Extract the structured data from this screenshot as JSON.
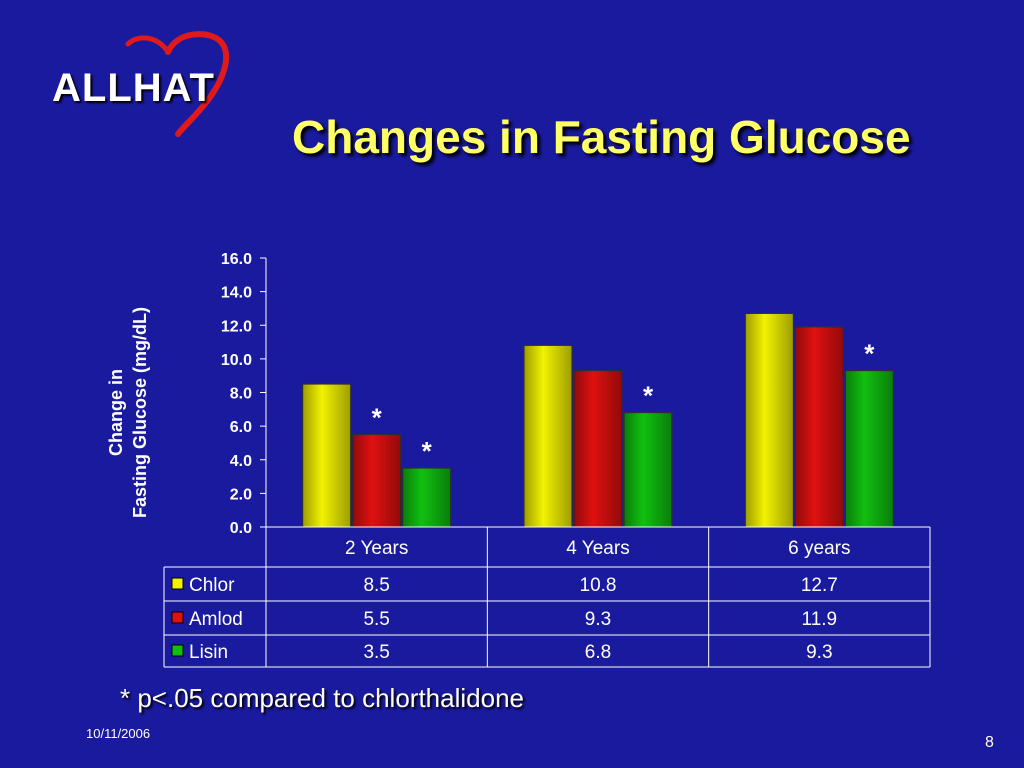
{
  "slide": {
    "logo_text": "ALLHAT",
    "title": "Changes in Fasting Glucose",
    "footnote": "* p<.05 compared to chlorthalidone",
    "date": "10/11/2006",
    "page_number": "8"
  },
  "colors": {
    "background": "#1a1a9e",
    "title": "#ffff66",
    "logo_heart": "#e01a1a"
  },
  "chart_data": {
    "type": "bar",
    "ylabel": [
      "Change in",
      "Fasting Glucose (mg/dL)"
    ],
    "ylim": [
      0,
      16
    ],
    "yticks": [
      "16.0",
      "14.0",
      "12.0",
      "10.0",
      "8.0",
      "6.0",
      "4.0",
      "2.0",
      "0.0"
    ],
    "categories": [
      "2 Years",
      "4 Years",
      "6 years"
    ],
    "series": [
      {
        "name": "Chlor",
        "values": [
          8.5,
          10.8,
          12.7
        ],
        "labels": [
          "8.5",
          "10.8",
          "12.7"
        ],
        "color": "#f2f200",
        "significant": [
          false,
          false,
          false
        ]
      },
      {
        "name": "Amlod",
        "values": [
          5.5,
          9.3,
          11.9
        ],
        "labels": [
          "5.5",
          "9.3",
          "11.9"
        ],
        "color": "#e01010",
        "significant": [
          true,
          false,
          false
        ]
      },
      {
        "name": "Lisin",
        "values": [
          3.5,
          6.8,
          9.3
        ],
        "labels": [
          "3.5",
          "6.8",
          "9.3"
        ],
        "color": "#10c010",
        "significant": [
          true,
          true,
          true
        ]
      }
    ],
    "significance_marker": "*",
    "legend": "data-table-below"
  }
}
